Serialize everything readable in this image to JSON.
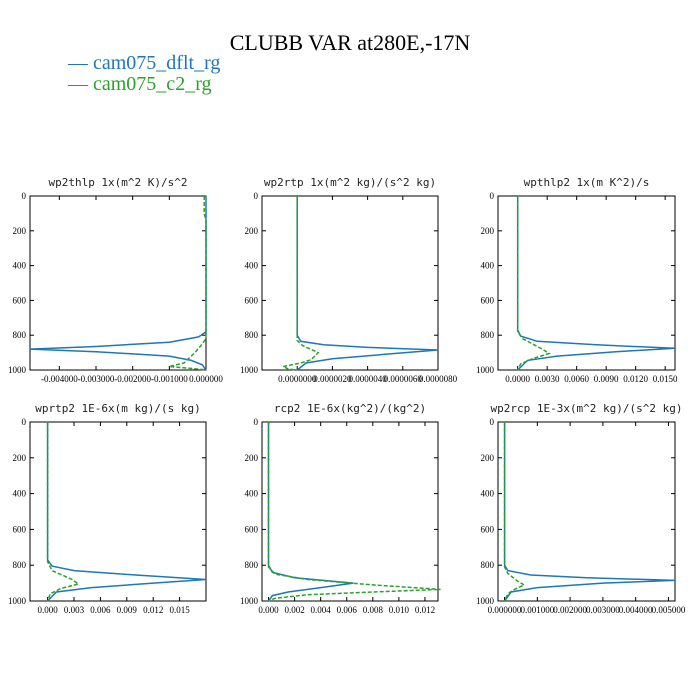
{
  "title": "CLUBB VAR at280E,-17N",
  "legend": [
    {
      "label": "cam075_dflt_rg",
      "color": "#1f77b4",
      "dash": "solid"
    },
    {
      "label": "cam075_c2_rg",
      "color": "#2ca02c",
      "dash": "dashed"
    }
  ],
  "chart_data": [
    {
      "type": "line",
      "title": "wp2thlp   1x(m^2 K)/s^2",
      "ylim": [
        1000,
        0
      ],
      "xlim": [
        -0.0048,
        0.0
      ],
      "yticks": [
        "0",
        "200",
        "400",
        "600",
        "800",
        "1000"
      ],
      "xticks": [
        {
          "v": -0.004,
          "label": "-0.004000"
        },
        {
          "v": -0.003,
          "label": "-0.003000"
        },
        {
          "v": -0.002,
          "label": "-0.002000"
        },
        {
          "v": -0.001,
          "label": "-0.001000"
        },
        {
          "v": 0.0,
          "label": "0.000000"
        }
      ],
      "series": [
        {
          "name": "cam075_dflt_rg",
          "points": [
            [
              0,
              0
            ],
            [
              0,
              780
            ],
            [
              -0.0002,
              810
            ],
            [
              -0.001,
              840
            ],
            [
              -0.003,
              865
            ],
            [
              -0.0048,
              880
            ],
            [
              -0.003,
              895
            ],
            [
              -0.001,
              920
            ],
            [
              -0.0004,
              945
            ],
            [
              -0.0001,
              970
            ],
            [
              0,
              1000
            ]
          ]
        },
        {
          "name": "cam075_c2_rg",
          "points": [
            [
              -5e-05,
              0
            ],
            [
              -5e-05,
              100
            ],
            [
              0,
              140
            ],
            [
              0,
              820
            ],
            [
              -0.0001,
              850
            ],
            [
              -0.0003,
              900
            ],
            [
              -0.0006,
              960
            ],
            [
              -0.001,
              980
            ],
            [
              -0.0002,
              995
            ],
            [
              0,
              1000
            ]
          ]
        }
      ]
    },
    {
      "type": "line",
      "title": "wp2rtp   1x(m^2 kg)/(s^2 kg)",
      "ylim": [
        1000,
        0
      ],
      "xlim": [
        -2e-06,
        8e-06
      ],
      "yticks": [
        "0",
        "200",
        "400",
        "600",
        "800",
        "1000"
      ],
      "xticks": [
        {
          "v": 0.0,
          "label": "0.0000000"
        },
        {
          "v": 2e-06,
          "label": "0.0000020"
        },
        {
          "v": 4e-06,
          "label": "0.0000040"
        },
        {
          "v": 6e-06,
          "label": "0.0000060"
        },
        {
          "v": 8e-06,
          "label": "0.0000080"
        }
      ],
      "series": [
        {
          "name": "cam075_dflt_rg",
          "points": [
            [
              0,
              0
            ],
            [
              0,
              800
            ],
            [
              2e-07,
              835
            ],
            [
              1.5e-06,
              855
            ],
            [
              4e-06,
              870
            ],
            [
              8e-06,
              885
            ],
            [
              5e-06,
              910
            ],
            [
              2e-06,
              935
            ],
            [
              5e-07,
              960
            ],
            [
              0,
              1000
            ]
          ]
        },
        {
          "name": "cam075_c2_rg",
          "points": [
            [
              0,
              0
            ],
            [
              0,
              830
            ],
            [
              3e-07,
              860
            ],
            [
              1.2e-06,
              900
            ],
            [
              8e-07,
              940
            ],
            [
              2e-07,
              960
            ],
            [
              -8e-07,
              980
            ],
            [
              -5e-07,
              995
            ],
            [
              0,
              1000
            ]
          ]
        }
      ]
    },
    {
      "type": "line",
      "title": "wpthlp2   1x(m K^2)/s",
      "ylim": [
        1000,
        0
      ],
      "xlim": [
        -0.002,
        0.016
      ],
      "yticks": [
        "0",
        "200",
        "400",
        "600",
        "800",
        "1000"
      ],
      "xticks": [
        {
          "v": 0.0,
          "label": "0.0000"
        },
        {
          "v": 0.003,
          "label": "0.0030"
        },
        {
          "v": 0.006,
          "label": "0.0060"
        },
        {
          "v": 0.009,
          "label": "0.0090"
        },
        {
          "v": 0.012,
          "label": "0.0120"
        },
        {
          "v": 0.015,
          "label": "0.0150"
        }
      ],
      "series": [
        {
          "name": "cam075_dflt_rg",
          "points": [
            [
              0,
              0
            ],
            [
              0,
              770
            ],
            [
              0.0003,
              805
            ],
            [
              0.002,
              835
            ],
            [
              0.008,
              855
            ],
            [
              0.016,
              875
            ],
            [
              0.01,
              895
            ],
            [
              0.004,
              920
            ],
            [
              0.001,
              945
            ],
            [
              0,
              1000
            ]
          ]
        },
        {
          "name": "cam075_c2_rg",
          "points": [
            [
              0,
              0
            ],
            [
              0,
              780
            ],
            [
              0.0005,
              820
            ],
            [
              0.0025,
              880
            ],
            [
              0.0032,
              905
            ],
            [
              0.0015,
              935
            ],
            [
              0.0003,
              965
            ],
            [
              0,
              1000
            ]
          ]
        }
      ]
    },
    {
      "type": "line",
      "title": "wprtp2   1E-6x(m kg)/(s kg)",
      "ylim": [
        1000,
        0
      ],
      "xlim": [
        -0.002,
        0.018
      ],
      "yticks": [
        "0",
        "200",
        "400",
        "600",
        "800",
        "1000"
      ],
      "xticks": [
        {
          "v": 0.0,
          "label": "0.000"
        },
        {
          "v": 0.003,
          "label": "0.003"
        },
        {
          "v": 0.006,
          "label": "0.006"
        },
        {
          "v": 0.009,
          "label": "0.009"
        },
        {
          "v": 0.012,
          "label": "0.012"
        },
        {
          "v": 0.015,
          "label": "0.015"
        }
      ],
      "series": [
        {
          "name": "cam075_dflt_rg",
          "points": [
            [
              0,
              0
            ],
            [
              0,
              770
            ],
            [
              0.0005,
              805
            ],
            [
              0.003,
              830
            ],
            [
              0.01,
              855
            ],
            [
              0.018,
              880
            ],
            [
              0.012,
              900
            ],
            [
              0.005,
              925
            ],
            [
              0.001,
              950
            ],
            [
              0,
              1000
            ]
          ]
        },
        {
          "name": "cam075_c2_rg",
          "points": [
            [
              0,
              0
            ],
            [
              0,
              780
            ],
            [
              0.0005,
              830
            ],
            [
              0.0028,
              880
            ],
            [
              0.0035,
              905
            ],
            [
              0.0015,
              930
            ],
            [
              0.0003,
              960
            ],
            [
              0,
              1000
            ]
          ]
        }
      ]
    },
    {
      "type": "line",
      "title": "rcp2   1E-6x(kg^2)/(kg^2)",
      "ylim": [
        1000,
        0
      ],
      "xlim": [
        -0.0005,
        0.013
      ],
      "yticks": [
        "0",
        "200",
        "400",
        "600",
        "800",
        "1000"
      ],
      "xticks": [
        {
          "v": 0.0,
          "label": "0.000"
        },
        {
          "v": 0.002,
          "label": "0.002"
        },
        {
          "v": 0.004,
          "label": "0.004"
        },
        {
          "v": 0.006,
          "label": "0.006"
        },
        {
          "v": 0.008,
          "label": "0.008"
        },
        {
          "v": 0.01,
          "label": "0.010"
        },
        {
          "v": 0.012,
          "label": "0.012"
        }
      ],
      "series": [
        {
          "name": "cam075_dflt_rg",
          "points": [
            [
              0,
              0
            ],
            [
              0,
              800
            ],
            [
              0.0003,
              840
            ],
            [
              0.002,
              870
            ],
            [
              0.0065,
              900
            ],
            [
              0.004,
              925
            ],
            [
              0.0015,
              950
            ],
            [
              0.0003,
              970
            ],
            [
              0,
              1000
            ]
          ]
        },
        {
          "name": "cam075_c2_rg",
          "points": [
            [
              0,
              0
            ],
            [
              0,
              810
            ],
            [
              0.0005,
              850
            ],
            [
              0.003,
              880
            ],
            [
              0.008,
              910
            ],
            [
              0.0132,
              935
            ],
            [
              0.008,
              950
            ],
            [
              0.003,
              965
            ],
            [
              0.0005,
              985
            ],
            [
              0,
              1000
            ]
          ]
        }
      ]
    },
    {
      "type": "line",
      "title": "wp2rcp   1E-3x(m^2 kg)/(s^2 kg)",
      "ylim": [
        1000,
        0
      ],
      "xlim": [
        -0.0002,
        0.0052
      ],
      "yticks": [
        "0",
        "200",
        "400",
        "600",
        "800",
        "1000"
      ],
      "xticks": [
        {
          "v": 0.0,
          "label": "0.000000"
        },
        {
          "v": 0.001,
          "label": "0.001000"
        },
        {
          "v": 0.002,
          "label": "0.002000"
        },
        {
          "v": 0.003,
          "label": "0.003000"
        },
        {
          "v": 0.004,
          "label": "0.004000"
        },
        {
          "v": 0.005,
          "label": "0.005000"
        }
      ],
      "series": [
        {
          "name": "cam075_dflt_rg",
          "points": [
            [
              0,
              0
            ],
            [
              0,
              800
            ],
            [
              0.0001,
              830
            ],
            [
              0.0008,
              855
            ],
            [
              0.0025,
              870
            ],
            [
              0.0052,
              885
            ],
            [
              0.003,
              900
            ],
            [
              0.001,
              925
            ],
            [
              0.0002,
              950
            ],
            [
              0,
              1000
            ]
          ]
        },
        {
          "name": "cam075_c2_rg",
          "points": [
            [
              0,
              0
            ],
            [
              0,
              810
            ],
            [
              0.0001,
              845
            ],
            [
              0.0004,
              890
            ],
            [
              0.0006,
              910
            ],
            [
              0.0003,
              935
            ],
            [
              0.0001,
              960
            ],
            [
              0,
              1000
            ]
          ]
        }
      ]
    }
  ]
}
